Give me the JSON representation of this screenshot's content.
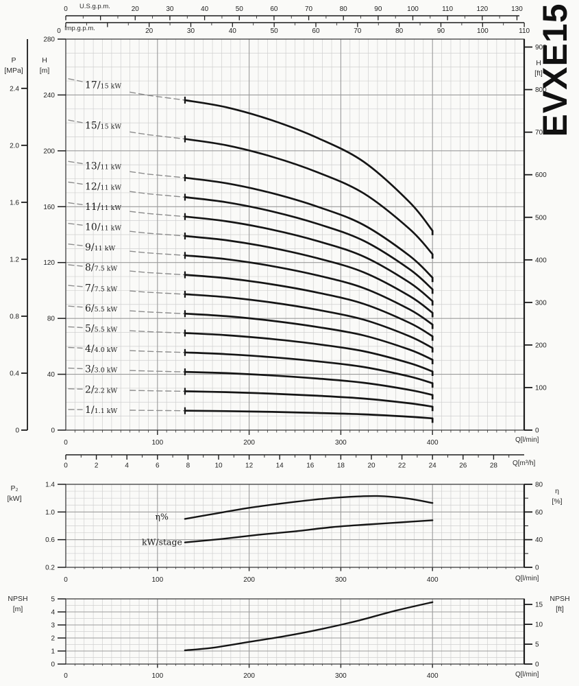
{
  "page": {
    "title": "EVXE15"
  },
  "colors": {
    "curve": "#151515",
    "dashed": "#8c8c8c",
    "grid_minor": "#cfcfcf",
    "grid_major": "#9a9a9a",
    "frame": "#3c3c3c",
    "axis": "#1a1a1a",
    "text": "#222222",
    "background": "#fafaf8"
  },
  "chart_data": [
    {
      "id": "head_curves",
      "type": "line",
      "title": "EVXE15",
      "x_axes": {
        "lmin": {
          "unit": "Q[l/min]",
          "ticks": [
            0,
            100,
            200,
            300,
            400
          ],
          "minor_step": 10,
          "range": [
            0,
            500
          ]
        },
        "m3h": {
          "unit": "Q[m³/h]",
          "ticks": [
            0,
            2,
            4,
            6,
            8,
            10,
            12,
            14,
            16,
            18,
            20,
            22,
            24,
            26,
            28
          ],
          "minor_step": 1,
          "range": [
            0,
            29
          ]
        },
        "usgpm": {
          "unit": "U.S.g.p.m.",
          "ticks": [
            0,
            20,
            30,
            40,
            50,
            60,
            70,
            80,
            90,
            100,
            110,
            120,
            130
          ],
          "minor_step": 5,
          "range": [
            0,
            130
          ]
        },
        "impgpm": {
          "unit": "Imp.g.p.m.",
          "ticks": [
            0,
            20,
            30,
            40,
            50,
            60,
            70,
            80,
            90,
            100,
            110
          ],
          "minor_step": 5,
          "range": [
            0,
            110
          ]
        }
      },
      "y_axes": {
        "H_m": {
          "unit_l1": "H",
          "unit_l2": "[m]",
          "ticks": [
            0,
            40,
            80,
            120,
            160,
            200,
            240,
            280
          ],
          "minor_step": 10,
          "range": [
            0,
            280
          ]
        },
        "P_MPa": {
          "unit_l1": "P",
          "unit_l2": "[MPa]",
          "ticks": [
            0,
            0.4,
            0.8,
            1.2,
            1.6,
            2.0,
            2.4
          ],
          "range": [
            0,
            2.4
          ]
        },
        "H_ft": {
          "unit_l1": "H",
          "unit_l2": "[ft]",
          "ticks": [
            0,
            100,
            200,
            300,
            400,
            500,
            600,
            700,
            800,
            900
          ],
          "range": [
            0,
            920
          ]
        }
      },
      "per_stage_head": {
        "Q_lmin": [
          3,
          40,
          80,
          130,
          175,
          225,
          275,
          325,
          375,
          400
        ],
        "head_per_stage_m": [
          14.8,
          14.5,
          14.15,
          13.9,
          13.6,
          13.05,
          12.3,
          11.3,
          9.6,
          8.4
        ],
        "solid_from_Q": 130,
        "solid_to_Q": 400
      },
      "curves": [
        {
          "stages": 17,
          "motor": "15 kW",
          "label": "17/15 kW"
        },
        {
          "stages": 15,
          "motor": "15 kW",
          "label": "15/15 kW"
        },
        {
          "stages": 13,
          "motor": "11 kW",
          "label": "13/11 kW"
        },
        {
          "stages": 12,
          "motor": "11 kW",
          "label": "12/11 kW"
        },
        {
          "stages": 11,
          "motor": "11 kW",
          "label": "11/11 kW"
        },
        {
          "stages": 10,
          "motor": "11 kW",
          "label": "10/11 kW"
        },
        {
          "stages": 9,
          "motor": "11 kW",
          "label": "9/11 kW"
        },
        {
          "stages": 8,
          "motor": "7.5 kW",
          "label": "8/7.5 kW"
        },
        {
          "stages": 7,
          "motor": "7.5 kW",
          "label": "7/7.5 kW"
        },
        {
          "stages": 6,
          "motor": "5.5 kW",
          "label": "6/5.5 kW"
        },
        {
          "stages": 5,
          "motor": "5.5 kW",
          "label": "5/5.5 kW"
        },
        {
          "stages": 4,
          "motor": "4.0 kW",
          "label": "4/4.0 kW"
        },
        {
          "stages": 3,
          "motor": "3.0 kW",
          "label": "3/3.0 kW"
        },
        {
          "stages": 2,
          "motor": "2.2 kW",
          "label": "2/2.2 kW"
        },
        {
          "stages": 1,
          "motor": "1.1 kW",
          "label": "1/1.1 kW"
        }
      ]
    },
    {
      "id": "power_efficiency",
      "type": "line",
      "y_left": {
        "unit_l1": "P₂",
        "unit_l2": "[kW]",
        "ticks": [
          0.2,
          0.6,
          1.0,
          1.4
        ],
        "minor_step": 0.1,
        "range": [
          0.2,
          1.4
        ]
      },
      "y_right": {
        "unit_l1": "η",
        "unit_l2": "[%]",
        "tick_labels": [
          80,
          60,
          40,
          0
        ]
      },
      "x": {
        "unit": "Q[l/min]",
        "ticks": [
          0,
          100,
          200,
          300,
          400
        ],
        "minor_step": 10,
        "range": [
          0,
          500
        ]
      },
      "series": [
        {
          "name": "eta",
          "label": "η%",
          "label_anchor_Q": 112,
          "label_p2": 0.925,
          "points_Q": [
            130,
            160,
            200,
            240,
            280,
            310,
            340,
            370,
            400
          ],
          "points_p2_scale": [
            0.9,
            0.97,
            1.06,
            1.13,
            1.19,
            1.22,
            1.23,
            1.2,
            1.13
          ]
        },
        {
          "name": "kw_per_stage",
          "label": "kW/stage",
          "label_anchor_Q": 127,
          "label_p2": 0.555,
          "points_Q": [
            130,
            170,
            210,
            250,
            290,
            330,
            365,
            400
          ],
          "points_p2_scale": [
            0.56,
            0.61,
            0.67,
            0.72,
            0.78,
            0.82,
            0.85,
            0.88
          ]
        }
      ]
    },
    {
      "id": "npsh",
      "type": "line",
      "y_left": {
        "unit_l1": "NPSH",
        "unit_l2": "[m]",
        "ticks": [
          0,
          1,
          2,
          3,
          4,
          5
        ],
        "minor_step": 0.5,
        "range": [
          0,
          5
        ]
      },
      "y_right": {
        "unit_l1": "NPSH",
        "unit_l2": "[ft]",
        "ticks": [
          0,
          5,
          10,
          15
        ]
      },
      "x": {
        "unit": "Q[l/min]",
        "ticks": [
          0,
          100,
          200,
          300,
          400
        ],
        "minor_step": 10,
        "range": [
          0,
          500
        ]
      },
      "series": [
        {
          "name": "npsh",
          "points_Q": [
            130,
            160,
            200,
            240,
            280,
            320,
            360,
            400
          ],
          "points_m": [
            1.05,
            1.25,
            1.7,
            2.15,
            2.7,
            3.35,
            4.1,
            4.75
          ]
        }
      ]
    }
  ]
}
